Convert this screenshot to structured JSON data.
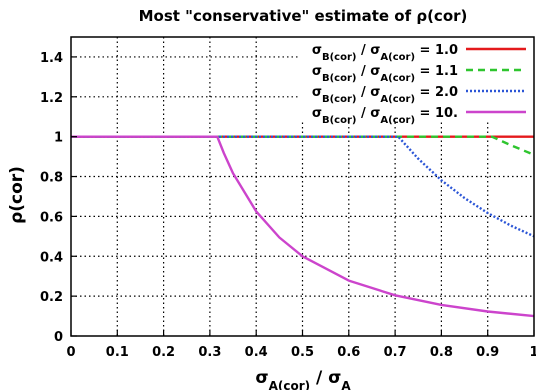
{
  "chart_data": {
    "type": "line",
    "title": "Most \"conservative\" estimate of ρ(cor)",
    "xlabel": {
      "main": "σ",
      "sub": "A(cor)",
      "rest": " / σ",
      "rest_sub": "A"
    },
    "ylabel": "ρ(cor)",
    "xlim": [
      0,
      1
    ],
    "ylim": [
      0,
      1.5
    ],
    "x_ticks": [
      "0",
      "0.1",
      "0.2",
      "0.3",
      "0.4",
      "0.5",
      "0.6",
      "0.7",
      "0.8",
      "0.9",
      "1"
    ],
    "y_ticks": [
      "0",
      "0.2",
      "0.4",
      "0.6",
      "0.8",
      "1",
      "1.2",
      "1.4"
    ],
    "grid": true,
    "legend_position": "top-right",
    "series": [
      {
        "legend": {
          "a": "σ",
          "a_sub": "B(cor)",
          "mid": " / σ",
          "b_sub": "A(cor)",
          "val": " = 1.0"
        },
        "color": "#e41a1c",
        "style": "solid",
        "x": [
          0,
          0.25,
          0.5,
          0.75,
          1.0
        ],
        "y": [
          1,
          1,
          1,
          1,
          1
        ]
      },
      {
        "legend": {
          "a": "σ",
          "a_sub": "B(cor)",
          "mid": " / σ",
          "b_sub": "A(cor)",
          "val": " = 1.1"
        },
        "color": "#2ec52e",
        "style": "dashed",
        "x": [
          0,
          0.5,
          0.909,
          0.95,
          1.0
        ],
        "y": [
          1,
          1,
          1,
          0.957,
          0.909
        ]
      },
      {
        "legend": {
          "a": "σ",
          "a_sub": "B(cor)",
          "mid": " / σ",
          "b_sub": "A(cor)",
          "val": " = 2.0"
        },
        "color": "#2b55d6",
        "style": "dotted",
        "x": [
          0,
          0.5,
          0.707,
          0.75,
          0.8,
          0.85,
          0.9,
          0.95,
          1.0
        ],
        "y": [
          1,
          1,
          1,
          0.889,
          0.781,
          0.692,
          0.617,
          0.554,
          0.5
        ]
      },
      {
        "legend": {
          "a": "σ",
          "a_sub": "B(cor)",
          "mid": " / σ",
          "b_sub": "A(cor)",
          "val": " = 10."
        },
        "color": "#cc44cc",
        "style": "solid",
        "x": [
          0,
          0.2,
          0.316,
          0.33,
          0.35,
          0.4,
          0.45,
          0.5,
          0.6,
          0.7,
          0.8,
          0.9,
          1.0
        ],
        "y": [
          1,
          1,
          1,
          0.918,
          0.816,
          0.625,
          0.494,
          0.4,
          0.278,
          0.204,
          0.156,
          0.123,
          0.1
        ]
      }
    ]
  }
}
